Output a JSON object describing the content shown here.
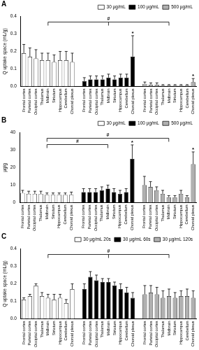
{
  "chart_data": [
    {
      "type": "bar",
      "title": "A",
      "y_label": "Q uptake space (mL/g)",
      "categories": [
        "Frontal cortex",
        "Parietal cortex",
        "Occipital cortex",
        "Thalamus",
        "Midbrain",
        "Striatum",
        "Hippocampus",
        "Cerebellum",
        "Choroid plexus"
      ],
      "ylim": [
        0,
        0.4
      ],
      "yticks": [
        {
          "value": 0,
          "label": "0.0"
        },
        {
          "value": 0.1,
          "label": "0.1"
        },
        {
          "value": 0.2,
          "label": "0.2"
        },
        {
          "value": 0.3,
          "label": "0.3"
        },
        {
          "value": 0.4,
          "label": "0.4"
        }
      ],
      "grid": false,
      "legend": "top-right",
      "series": [
        {
          "name": "30 µg/mL",
          "color": "#ffffff",
          "values": [
            0.19,
            0.17,
            0.16,
            0.15,
            0.15,
            0.14,
            0.15,
            0.15,
            0.14
          ],
          "errors": [
            0.05,
            0.05,
            0.05,
            0.04,
            0.04,
            0.04,
            0.05,
            0.05,
            0.05
          ]
        },
        {
          "name": "100 µg/mL",
          "color": "#000000",
          "values": [
            0.03,
            0.04,
            0.04,
            0.04,
            0.05,
            0.04,
            0.05,
            0.05,
            0.17
          ],
          "errors": [
            0.02,
            0.02,
            0.02,
            0.02,
            0.02,
            0.02,
            0.02,
            0.02,
            0.12
          ]
        },
        {
          "name": "500 µg/mL",
          "color": "#b0b0b0",
          "values": [
            0.015,
            0.01,
            0.01,
            0.005,
            0.005,
            0.005,
            0.005,
            0.005,
            0.025
          ],
          "errors": [
            0.01,
            0.01,
            0.01,
            0.005,
            0.005,
            0.005,
            0.005,
            0.005,
            0.02
          ]
        }
      ],
      "annotations": [
        {
          "text": "#",
          "from": "30 µg/mL",
          "to": [
            "100 µg/mL",
            "500 µg/mL"
          ]
        },
        {
          "text": "*",
          "series": "100 µg/mL",
          "category": "Choroid plexus"
        },
        {
          "text": "*",
          "series": "500 µg/mL",
          "category": "Choroid plexus"
        }
      ]
    },
    {
      "type": "bar",
      "title": "B",
      "y_label": "µg/g",
      "categories": [
        "Frontal cortex",
        "Parietal cortex",
        "Occipital cortex",
        "Thalamus",
        "Midbrain",
        "Striatum",
        "Hippocampus",
        "Cerebellum",
        "Choroid plexus"
      ],
      "ylim": [
        0,
        40
      ],
      "yticks": [
        0,
        10,
        20,
        30,
        40
      ],
      "grid": false,
      "legend": "top-right",
      "series": [
        {
          "name": "30 µg/mL",
          "color": "#ffffff",
          "values": [
            5.5,
            5,
            5,
            5,
            4.5,
            4.5,
            4.5,
            4.5,
            4.5
          ],
          "errors": [
            1.5,
            1.5,
            1.5,
            1.5,
            1,
            1,
            1,
            1,
            1.5
          ]
        },
        {
          "name": "100 µg/mL",
          "color": "#000000",
          "values": [
            6,
            6,
            6,
            7,
            8,
            6,
            5,
            6,
            25
          ],
          "errors": [
            2,
            2,
            2,
            2,
            2,
            2,
            2,
            2,
            8
          ]
        },
        {
          "name": "500 µg/mL",
          "color": "#b0b0b0",
          "values": [
            10,
            9,
            7,
            5,
            3,
            3,
            5,
            3,
            22
          ],
          "errors": [
            5,
            3,
            2,
            2,
            1,
            1,
            2,
            1,
            7
          ]
        }
      ],
      "annotations": [
        {
          "text": "#",
          "from": "30 µg/mL",
          "to": [
            "100 µg/mL"
          ]
        },
        {
          "text": "#",
          "from": "30 µg/mL",
          "to": [
            "500 µg/mL"
          ]
        },
        {
          "text": "*",
          "series": "100 µg/mL",
          "category": "Choroid plexus"
        },
        {
          "text": "*",
          "series": "500 µg/mL",
          "category": "Choroid plexus"
        }
      ]
    },
    {
      "type": "bar",
      "title": "C",
      "y_label": "Q uptake space (mL/g)",
      "categories": [
        "Frontal cortex",
        "Parietal cortex",
        "Occipital cortex",
        "Thalamus",
        "Midbrain",
        "Striatum",
        "Hippocampus",
        "Cerebellum",
        "Choroid plexus"
      ],
      "ylim": [
        0,
        0.4
      ],
      "yticks": [
        {
          "value": 0,
          "label": "0.0"
        },
        {
          "value": 0.1,
          "label": "0.1"
        },
        {
          "value": 0.2,
          "label": "0.2"
        },
        {
          "value": 0.3,
          "label": "0.3"
        },
        {
          "value": 0.4,
          "label": "0.4"
        }
      ],
      "grid": false,
      "legend": "top-right",
      "series": [
        {
          "name": "30 µg/mL 20s",
          "color": "#ffffff",
          "values": [
            0.11,
            0.13,
            0.19,
            0.13,
            0.12,
            0.11,
            0.12,
            0.09,
            0.17
          ],
          "errors": [
            0.01,
            0.01,
            0.01,
            0.02,
            0.02,
            0.03,
            0.02,
            0.02,
            0.03
          ]
        },
        {
          "name": "30 µg/mL 60s",
          "color": "#000000",
          "values": [
            0.17,
            0.24,
            0.22,
            0.21,
            0.21,
            0.19,
            0.17,
            0.15,
            0.12
          ],
          "errors": [
            0.03,
            0.03,
            0.03,
            0.02,
            0.02,
            0.02,
            0.03,
            0.03,
            0.03
          ]
        },
        {
          "name": "30 µg/mL 120s",
          "color": "#b0b0b0",
          "values": [
            0.14,
            0.15,
            0.14,
            0.12,
            0.13,
            0.12,
            0.13,
            0.13,
            0.12
          ],
          "errors": [
            0.05,
            0.04,
            0.04,
            0.04,
            0.04,
            0.03,
            0.03,
            0.04,
            0.04
          ]
        }
      ],
      "annotations": [
        {
          "text": "#",
          "from": "30 µg/mL 20s",
          "to": [
            "30 µg/mL 60s",
            "30 µg/mL 120s"
          ]
        }
      ]
    }
  ]
}
